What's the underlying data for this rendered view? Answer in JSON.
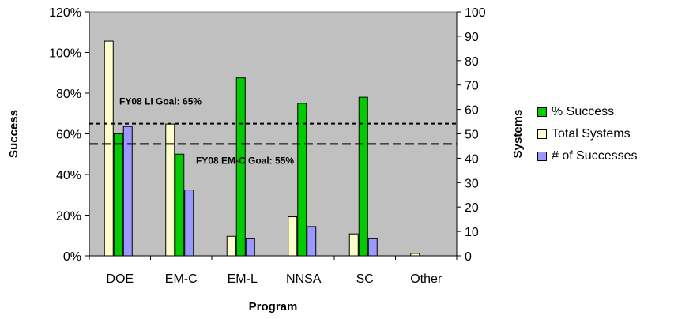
{
  "chart_data": {
    "type": "bar",
    "categories": [
      "DOE",
      "EM-C",
      "EM-L",
      "NNSA",
      "SC",
      "Other"
    ],
    "series": [
      {
        "name": "Total Systems",
        "axis": "right",
        "color": "#FFFFCC",
        "values": [
          88,
          54,
          8,
          16,
          9,
          1
        ]
      },
      {
        "name": "% Success",
        "axis": "left",
        "color": "#00CC00",
        "values": [
          0.6,
          0.5,
          0.875,
          0.75,
          0.78,
          null
        ]
      },
      {
        "name": "# of Successes",
        "axis": "right",
        "color": "#9999FF",
        "values": [
          53,
          27,
          7,
          12,
          7,
          null
        ]
      }
    ],
    "xlabel": "Program",
    "ylabel": "Success",
    "y2label": "Systems",
    "ylim": [
      0,
      1.2
    ],
    "y2lim": [
      0,
      100
    ],
    "yticks": [
      "0%",
      "20%",
      "40%",
      "60%",
      "80%",
      "100%",
      "120%"
    ],
    "y2ticks": [
      "0",
      "10",
      "20",
      "30",
      "40",
      "50",
      "60",
      "70",
      "80",
      "90",
      "100"
    ],
    "reference_lines": [
      {
        "label": "FY08 LI Goal: 65%",
        "value": 0.65,
        "style": "short-dash"
      },
      {
        "label": "FY08 EM-C Goal: 55%",
        "value": 0.55,
        "style": "long-dash"
      }
    ],
    "plot_background": "#C0C0C0",
    "grid": false,
    "legend_position": "right"
  }
}
